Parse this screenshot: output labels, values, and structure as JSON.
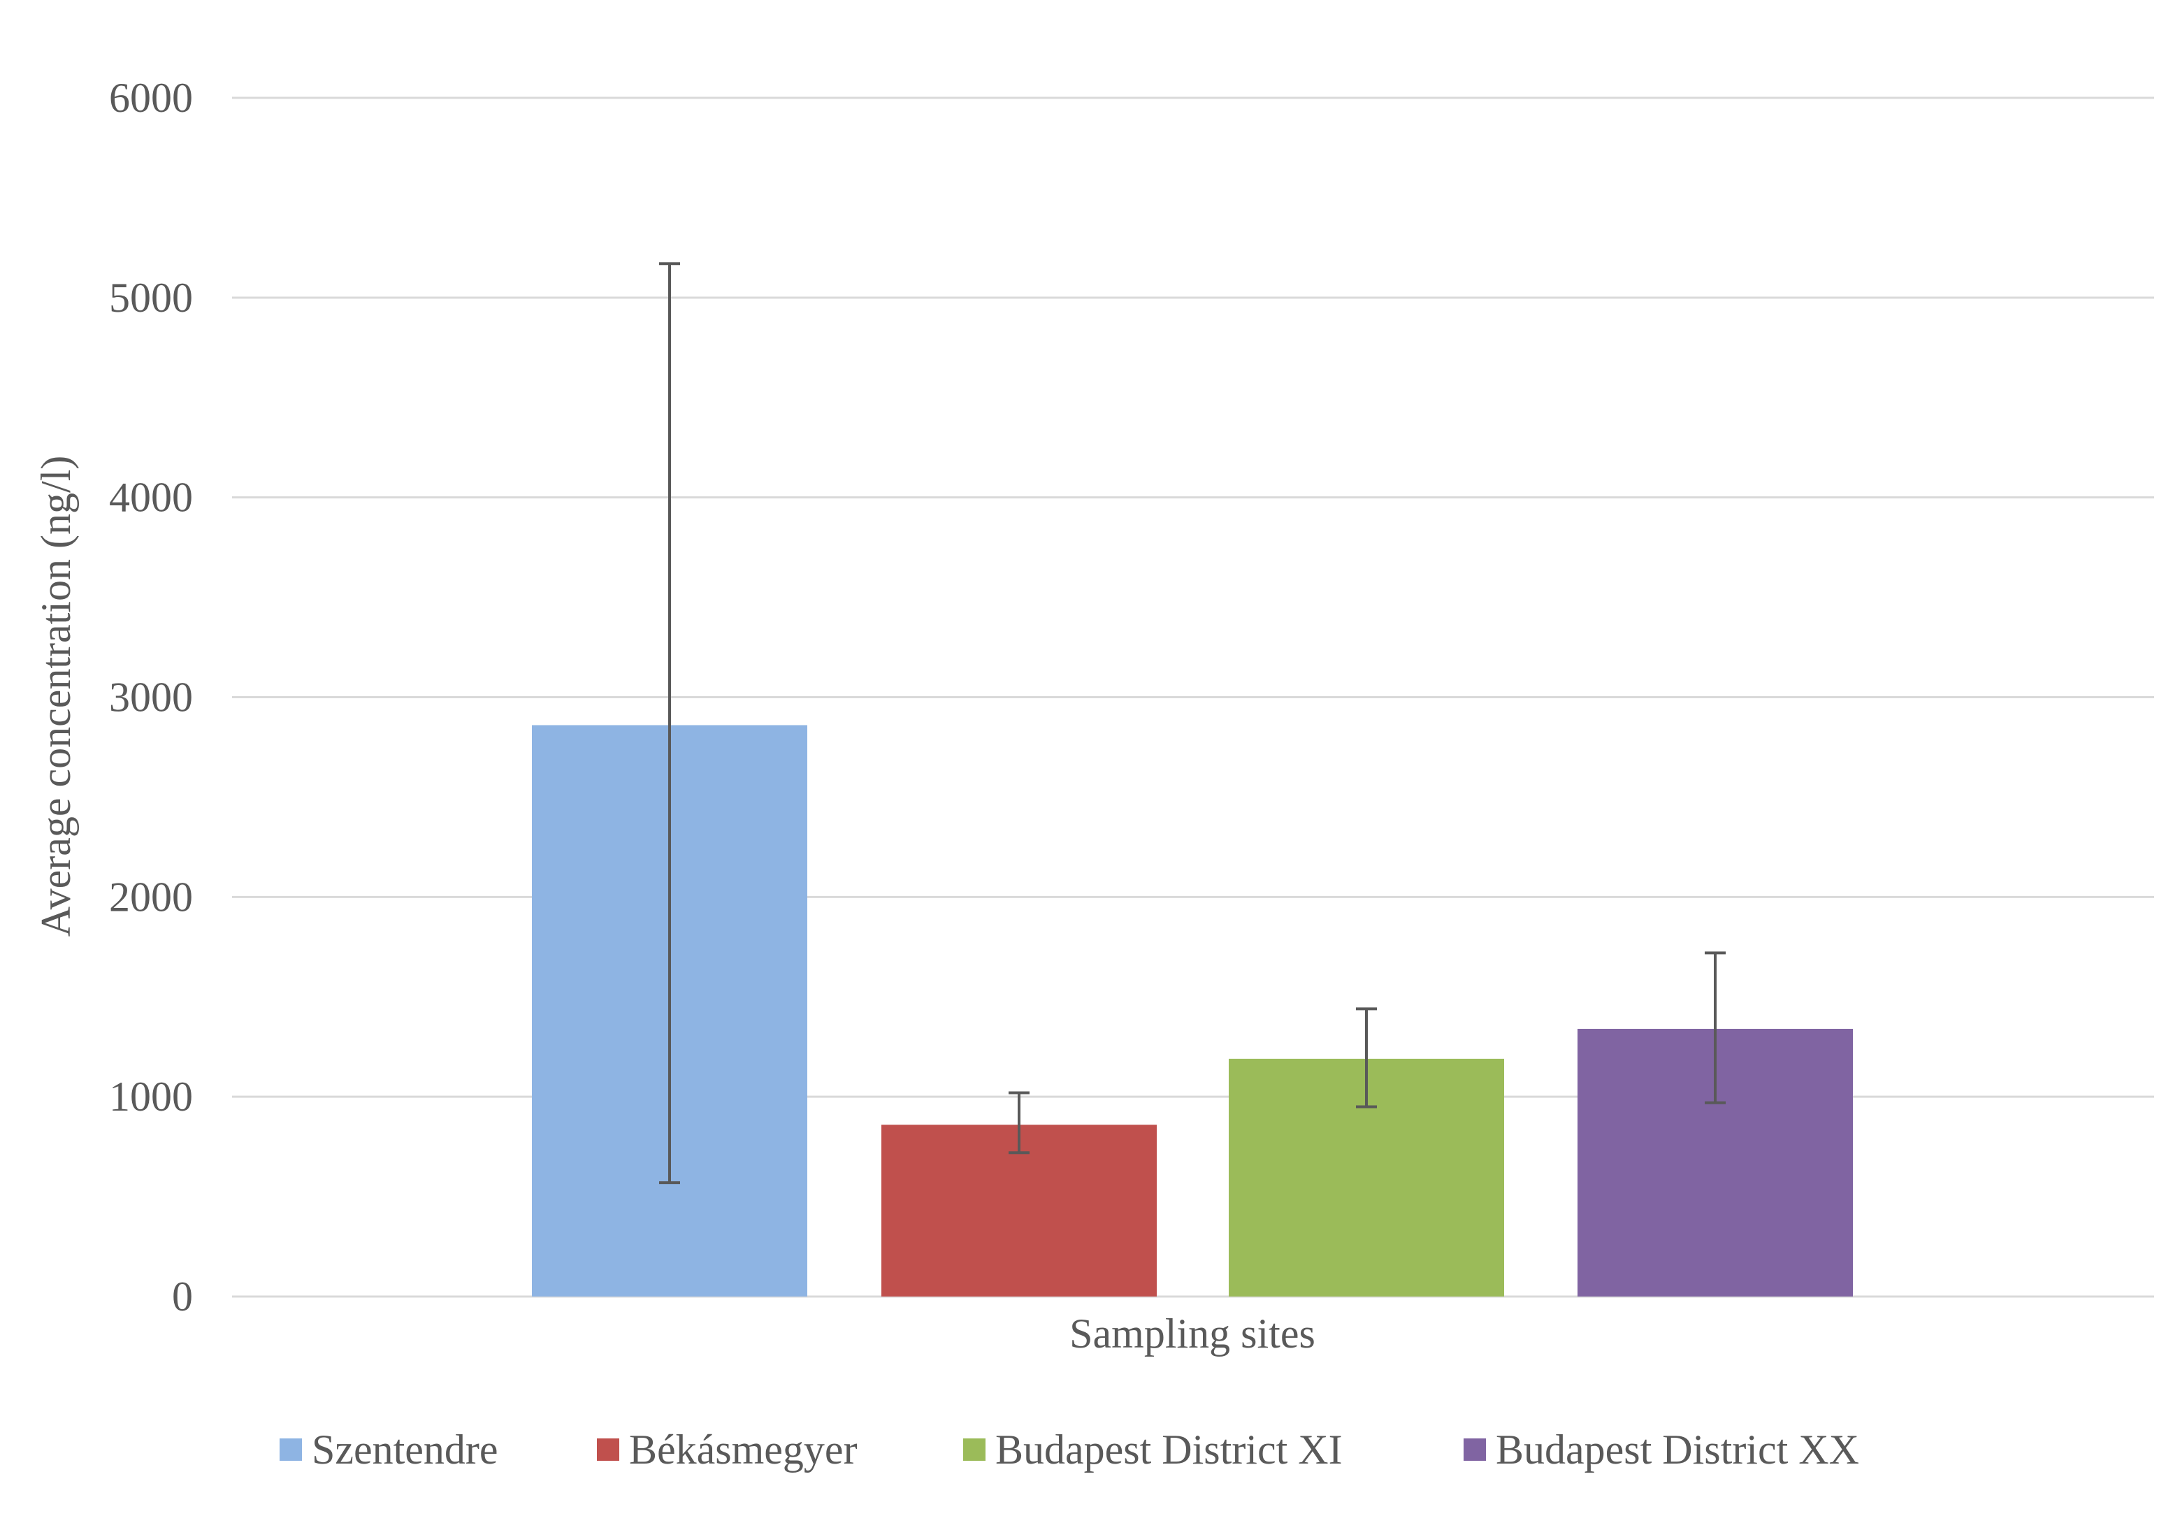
{
  "chart_data": {
    "type": "bar",
    "xlabel": "Sampling sites",
    "ylabel": "Average concentration (ng/l)",
    "ylim": [
      0,
      6000
    ],
    "yticks": [
      0,
      1000,
      2000,
      3000,
      4000,
      5000,
      6000
    ],
    "grid": true,
    "legend_position": "bottom",
    "series": [
      {
        "name": "Szentendre",
        "value": 2860,
        "error_low": 570,
        "error_high": 5170,
        "color": "#8EB4E3"
      },
      {
        "name": "Békásmegyer",
        "value": 860,
        "error_low": 720,
        "error_high": 1020,
        "color": "#C0504D"
      },
      {
        "name": "Budapest District XI",
        "value": 1190,
        "error_low": 950,
        "error_high": 1440,
        "color": "#9BBB59"
      },
      {
        "name": "Budapest District XX",
        "value": 1340,
        "error_low": 970,
        "error_high": 1720,
        "color": "#8064A2"
      }
    ]
  }
}
